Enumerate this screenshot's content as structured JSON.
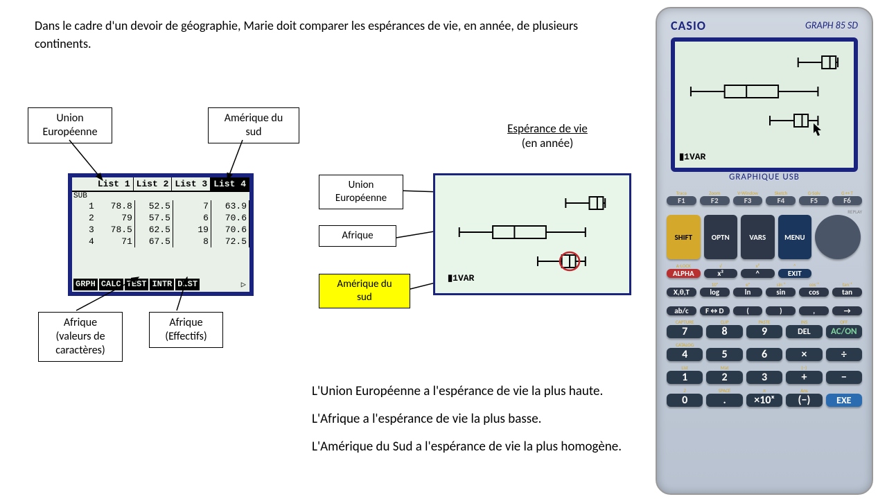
{
  "intro": "Dans le cadre d'un devoir de géographie, Marie doit comparer les espérances de vie, en année, de plusieurs continents.",
  "labels": {
    "ue": "Union\nEuropéenne",
    "afr_val": "Afrique\n(valeurs de\ncaractères)",
    "afr_eff": "Afrique\n(Effectifs)",
    "am_sud": "Amérique du\nsud",
    "ue2": "Union\nEuropéenne",
    "afr2": "Afrique",
    "am_sud2": "Amérique du\nsud"
  },
  "list": {
    "headers": [
      "List 1",
      "List 2",
      "List 3",
      "List 4"
    ],
    "sub": "SUB",
    "rows": [
      [
        "1",
        "78.8",
        "52.5",
        "7",
        "63.9"
      ],
      [
        "2",
        "79",
        "57.5",
        "6",
        "70.6"
      ],
      [
        "3",
        "78.5",
        "62.5",
        "19",
        "70.6"
      ],
      [
        "4",
        "71",
        "67.5",
        "8",
        "72.5"
      ]
    ],
    "footer": [
      "GRPH",
      "CALC",
      "TEST",
      "INTR",
      "DIST"
    ],
    "footer_arrow": "▷"
  },
  "chart": {
    "title": "Espérance de vie",
    "subtitle": "(en année)",
    "ivar": "▮1VAR",
    "x_range": [
      40,
      85
    ],
    "boxplots": [
      {
        "name": "UE",
        "y": 28,
        "min": 71,
        "q1": 77,
        "med": 79,
        "q3": 80.5,
        "max": 81
      },
      {
        "name": "Afrique",
        "y": 70,
        "min": 44,
        "q1": 52.5,
        "med": 58,
        "q3": 66,
        "max": 76
      },
      {
        "name": "AmSud",
        "y": 112,
        "min": 63.9,
        "q1": 70,
        "med": 72,
        "q3": 73.5,
        "max": 76
      }
    ],
    "circle_on": 2
  },
  "calc_screen": {
    "x_range": [
      40,
      85
    ],
    "boxplots": [
      {
        "y": 24,
        "min": 71,
        "q1": 77,
        "med": 79,
        "q3": 80.5,
        "max": 81
      },
      {
        "y": 66,
        "min": 44,
        "q1": 52.5,
        "med": 58,
        "q3": 66,
        "max": 76
      },
      {
        "y": 108,
        "min": 63.9,
        "q1": 70,
        "med": 72,
        "q3": 73.5,
        "max": 76
      }
    ],
    "ivar": "▮1VAR"
  },
  "conclusions": [
    "L'Union Européenne a l'espérance de vie la plus haute.",
    "L'Afrique a l'espérance de vie la plus basse.",
    "L'Amérique du Sud a l'espérance de vie la plus homogène."
  ],
  "calc": {
    "brand": "CASIO",
    "model": "GRAPH 85 SD",
    "usb": "GRAPHIQUE USB",
    "fkeys_top": [
      "Trace",
      "Zoom",
      "V-Window",
      "Sketch",
      "G-Solv",
      "G↔T"
    ],
    "fkeys": [
      "F1",
      "F2",
      "F3",
      "F4",
      "F5",
      "F6"
    ],
    "row2_top": [
      "",
      "",
      "PRGM",
      "SET UP",
      "",
      ""
    ],
    "row2": [
      "SHIFT",
      "OPTN",
      "VARS",
      "MENU"
    ],
    "row3_top": [
      "A-LOCK",
      "√",
      "x²",
      "^",
      "QUIT"
    ],
    "row3": [
      "ALPHA",
      "x²",
      "^",
      "EXIT"
    ],
    "row4_top": [
      "",
      "10ˣ",
      "eˣ",
      "sin⁻¹",
      "cos⁻¹",
      "tan⁻¹"
    ],
    "row4": [
      "X,θ,T",
      "log",
      "ln",
      "sin",
      "cos",
      "tan"
    ],
    "row5_top": [
      "",
      "",
      "",
      "",
      "",
      ""
    ],
    "row5": [
      "ab/c",
      "F↔D",
      "(",
      ")",
      ",",
      "→"
    ],
    "num_top": [
      [
        "CAPTURE",
        "CLIP",
        "PASTE",
        "INS",
        "OFF"
      ],
      [
        "CATALOG",
        "",
        "",
        "",
        ""
      ],
      [
        "List",
        "Mat",
        "",
        "(−)",
        ""
      ],
      [
        "Z",
        "SPACE",
        "π",
        "Ans",
        ""
      ]
    ],
    "nums": [
      [
        "7",
        "8",
        "9",
        "DEL",
        "AC/ON"
      ],
      [
        "4",
        "5",
        "6",
        "×",
        "÷"
      ],
      [
        "1",
        "2",
        "3",
        "+",
        "−"
      ],
      [
        "0",
        ".",
        "×10ˣ",
        "(−)",
        "EXE"
      ]
    ]
  },
  "colors": {
    "frame": "#1a237e",
    "lcd": "#e2efe2",
    "highlight": "#ffff00",
    "circle": "#c1272d"
  }
}
